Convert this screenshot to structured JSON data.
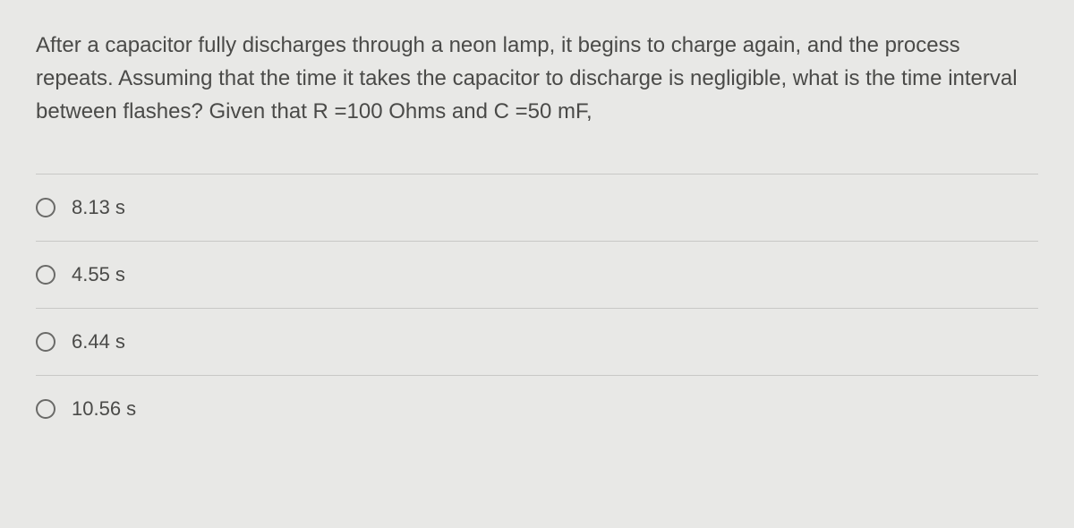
{
  "question": {
    "text": "After a capacitor fully discharges through a neon lamp, it begins to charge again, and the process repeats. Assuming that the time it takes the capacitor to discharge is negligible, what is the time interval between flashes? Given that R =100 Ohms and C =50 mF,",
    "fontsize": 24,
    "text_color": "#4a4a48",
    "background_color": "#e8e8e6"
  },
  "options": [
    {
      "label": "8.13 s",
      "selected": false
    },
    {
      "label": "4.55 s",
      "selected": false
    },
    {
      "label": "6.44 s",
      "selected": false
    },
    {
      "label": "10.56 s",
      "selected": false
    }
  ],
  "styling": {
    "divider_color": "#c8c8c6",
    "radio_border_color": "#6a6a68",
    "option_fontsize": 22
  }
}
